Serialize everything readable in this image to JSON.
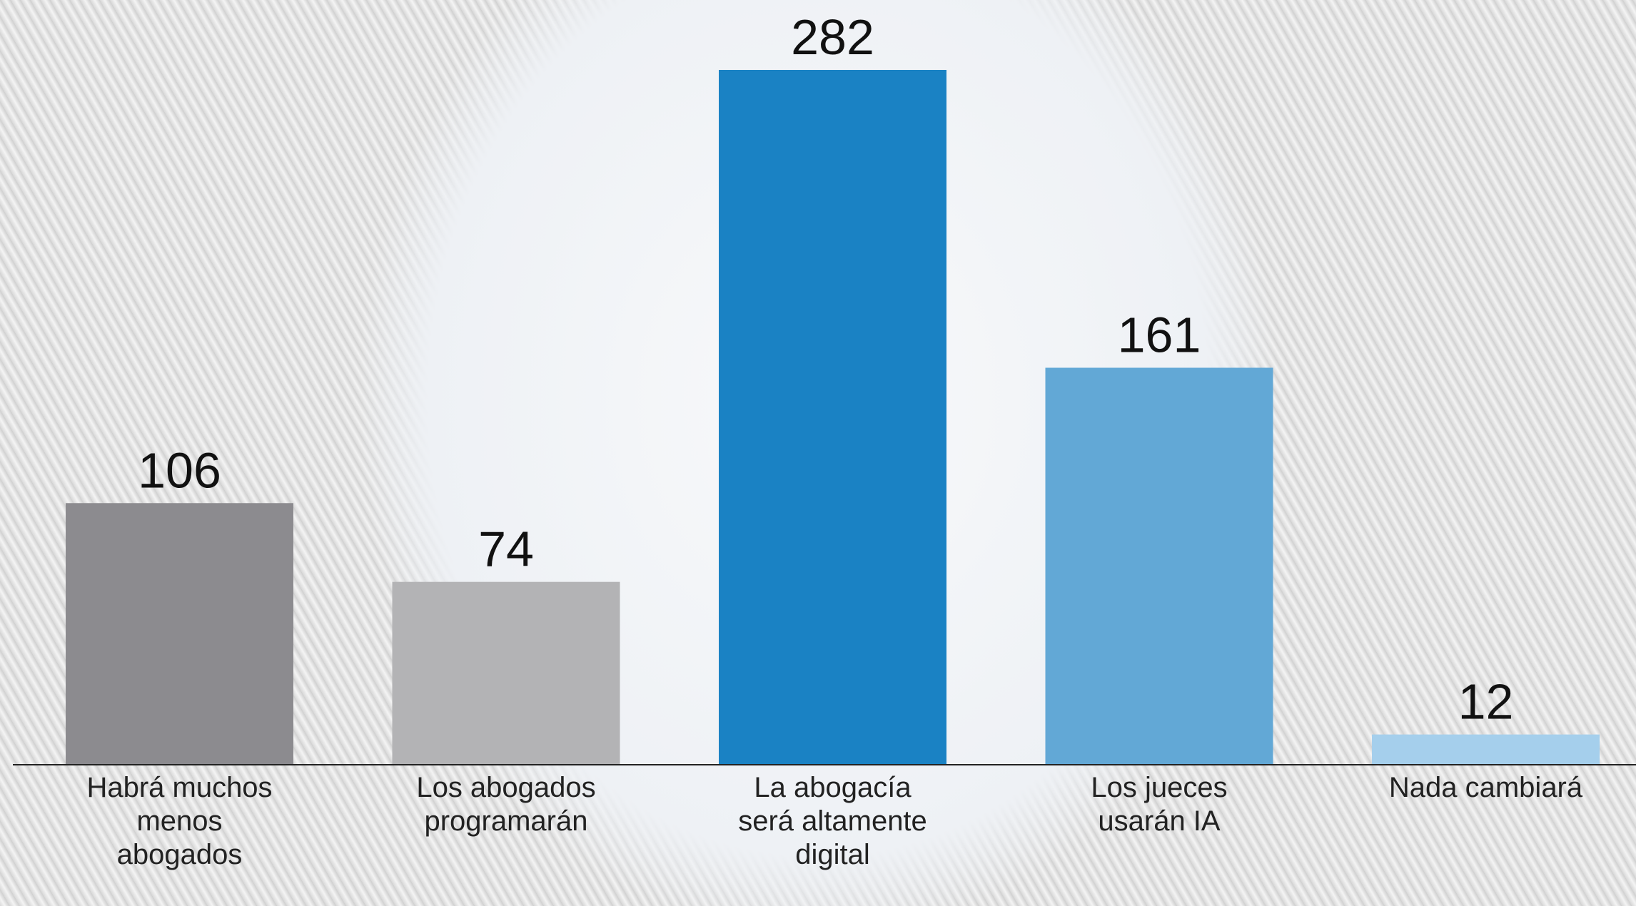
{
  "chart_data": {
    "type": "bar",
    "categories": [
      "Habrá muchos menos abogados",
      "Los abogados programarán",
      "La abogacía será altamente digital",
      "Los jueces usarán IA",
      "Nada cambiará"
    ],
    "values": [
      106,
      74,
      282,
      161,
      12
    ],
    "colors": [
      "#8c8b8f",
      "#b3b3b5",
      "#1a82c4",
      "#62a8d6",
      "#a5cfec"
    ]
  }
}
